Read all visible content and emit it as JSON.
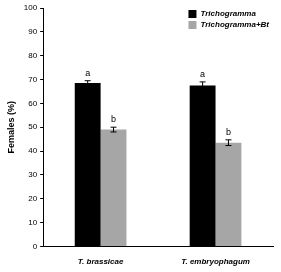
{
  "chart_data": {
    "type": "bar",
    "y_label": "Females (%)",
    "categories": [
      "T. brassicae",
      "T. embryophagum"
    ],
    "series": [
      {
        "name": "Trichogramma",
        "color": "#000000",
        "values": [
          68.5,
          67.5
        ],
        "errors": [
          1.0,
          1.5
        ],
        "annotations": [
          "a",
          "a"
        ]
      },
      {
        "name": "Trichogramma+Bt",
        "color": "#a6a6a6",
        "values": [
          49,
          43.5
        ],
        "errors": [
          1.0,
          1.2
        ],
        "annotations": [
          "b",
          "b"
        ]
      }
    ],
    "ylim": [
      0,
      100
    ],
    "yticks": [
      0,
      10,
      20,
      30,
      40,
      50,
      60,
      70,
      80,
      90,
      100
    ],
    "grid": false,
    "legend": "top-right"
  }
}
